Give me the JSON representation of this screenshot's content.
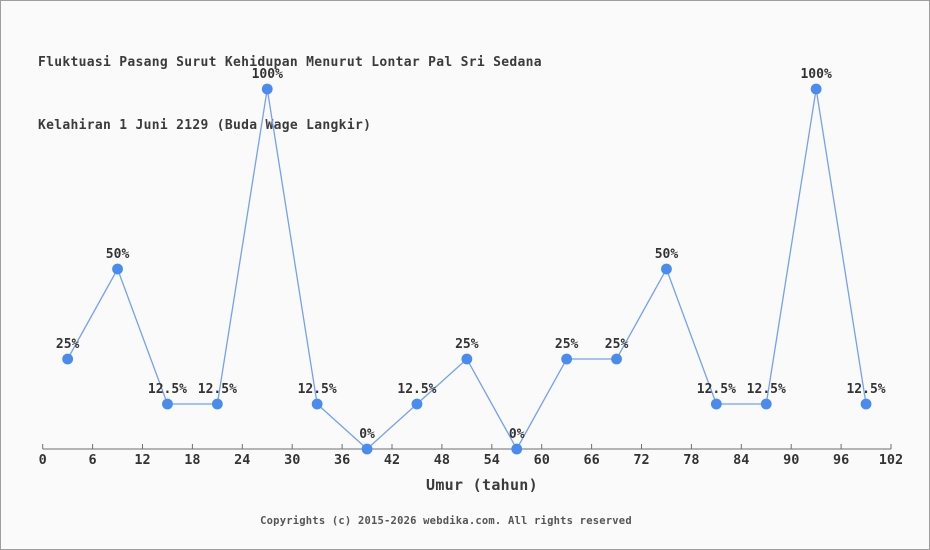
{
  "title": {
    "line1": "Fluktuasi Pasang Surut Kehidupan Menurut Lontar Pal Sri Sedana",
    "line2": "Kelahiran 1 Juni 2129 (Buda Wage Langkir)"
  },
  "chart_data": {
    "type": "line",
    "x": [
      3,
      9,
      15,
      21,
      27,
      33,
      39,
      45,
      51,
      57,
      63,
      69,
      75,
      81,
      87,
      93,
      99
    ],
    "values": [
      25,
      50,
      12.5,
      12.5,
      100,
      12.5,
      0,
      12.5,
      25,
      0,
      25,
      25,
      50,
      12.5,
      12.5,
      100,
      12.5
    ],
    "point_labels": [
      "25%",
      "50%",
      "12.5%",
      "12.5%",
      "100%",
      "12.5%",
      "0%",
      "12.5%",
      "25%",
      "0%",
      "25%",
      "25%",
      "50%",
      "12.5%",
      "12.5%",
      "100%",
      "12.5%"
    ],
    "xlabel": "Umur (tahun)",
    "x_ticks": [
      0,
      6,
      12,
      18,
      24,
      30,
      36,
      42,
      48,
      54,
      60,
      66,
      72,
      78,
      84,
      90,
      96,
      102
    ],
    "xlim": [
      0,
      102
    ],
    "ylim": [
      0,
      100
    ],
    "grid": false,
    "legend": "none",
    "line_color": "#74a1ef",
    "marker_color": "#4a8bf0",
    "label_color": "#333333",
    "tick_label_color": "#333333",
    "axis_color": "#6e6e6e",
    "background_color": "#fafafa"
  },
  "footer": {
    "copyright": "Copyrights (c) 2015-2026 webdika.com. All rights reserved"
  }
}
